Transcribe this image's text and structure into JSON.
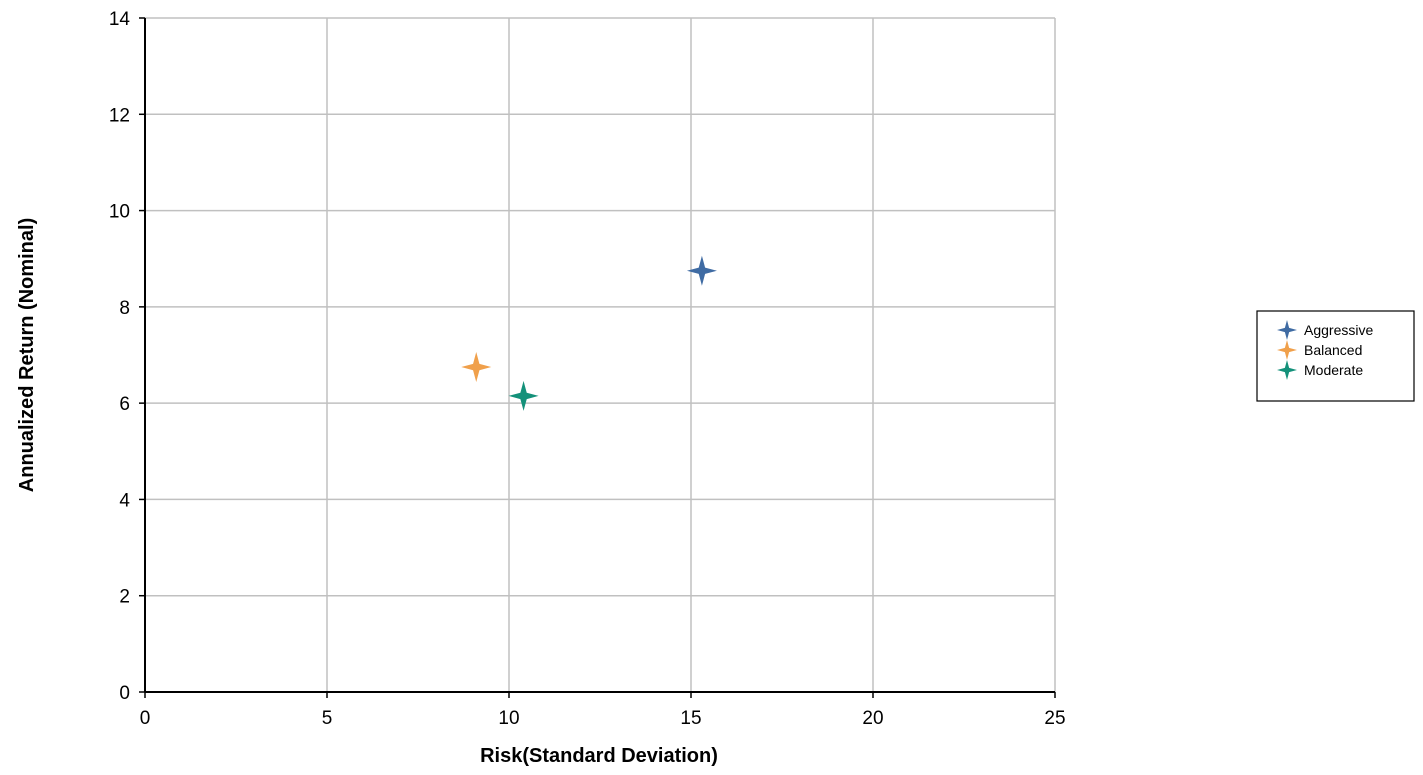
{
  "chart_data": {
    "type": "scatter",
    "title": "",
    "xlabel": "Risk(Standard Deviation)",
    "ylabel": "Annualized Return (Nominal)",
    "xlim": [
      0,
      25
    ],
    "ylim": [
      0,
      14
    ],
    "xticks": [
      "0",
      "5",
      "10",
      "15",
      "20",
      "25"
    ],
    "yticks": [
      "0",
      "2",
      "4",
      "6",
      "8",
      "10",
      "12",
      "14"
    ],
    "grid": true,
    "legend_position": "right",
    "series": [
      {
        "name": "Aggressive",
        "color": "#3f6ba3",
        "marker": "four-point-star",
        "x": [
          15.3
        ],
        "y": [
          8.75
        ]
      },
      {
        "name": "Balanced",
        "color": "#f0a04b",
        "marker": "four-point-star",
        "x": [
          9.1
        ],
        "y": [
          6.75
        ]
      },
      {
        "name": "Moderate",
        "color": "#14917a",
        "marker": "four-point-star",
        "x": [
          10.4
        ],
        "y": [
          6.15
        ]
      }
    ]
  }
}
